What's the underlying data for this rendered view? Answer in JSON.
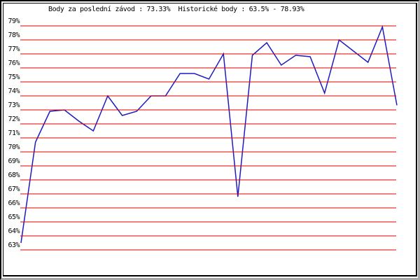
{
  "header": {
    "title": "Body za poslední závod : 73.33%  Historické body : 63.5% - 78.93%"
  },
  "chart_data": {
    "type": "line",
    "title": "Body za poslední závod : 73.33%  Historické body : 63.5% - 78.93%",
    "last_race_points_pct": 73.33,
    "historical_min_pct": 63.5,
    "historical_max_pct": 78.93,
    "values": [
      63.5,
      70.7,
      72.9,
      73.0,
      72.2,
      71.5,
      74.0,
      72.6,
      72.9,
      74.0,
      74.0,
      75.6,
      75.6,
      75.2,
      77.0,
      66.8,
      76.9,
      77.8,
      76.2,
      76.9,
      76.8,
      74.2,
      78.0,
      77.2,
      76.4,
      78.93,
      73.33
    ],
    "n_points": 27,
    "ytick_labels": [
      "79%",
      "78%",
      "77%",
      "76%",
      "75%",
      "74%",
      "73%",
      "72%",
      "71%",
      "70%",
      "69%",
      "68%",
      "67%",
      "66%",
      "65%",
      "64%",
      "63%"
    ],
    "ylim": [
      63,
      79
    ],
    "grid": "horizontal",
    "legend": "none",
    "xtick_labels": []
  },
  "colors": {
    "background": "#ffffff",
    "grid_line": "#dd0000",
    "data_line": "#1c1cc0",
    "text": "#000000",
    "frame_dark": "#000000",
    "frame_shadow": "#a8a8a8"
  }
}
